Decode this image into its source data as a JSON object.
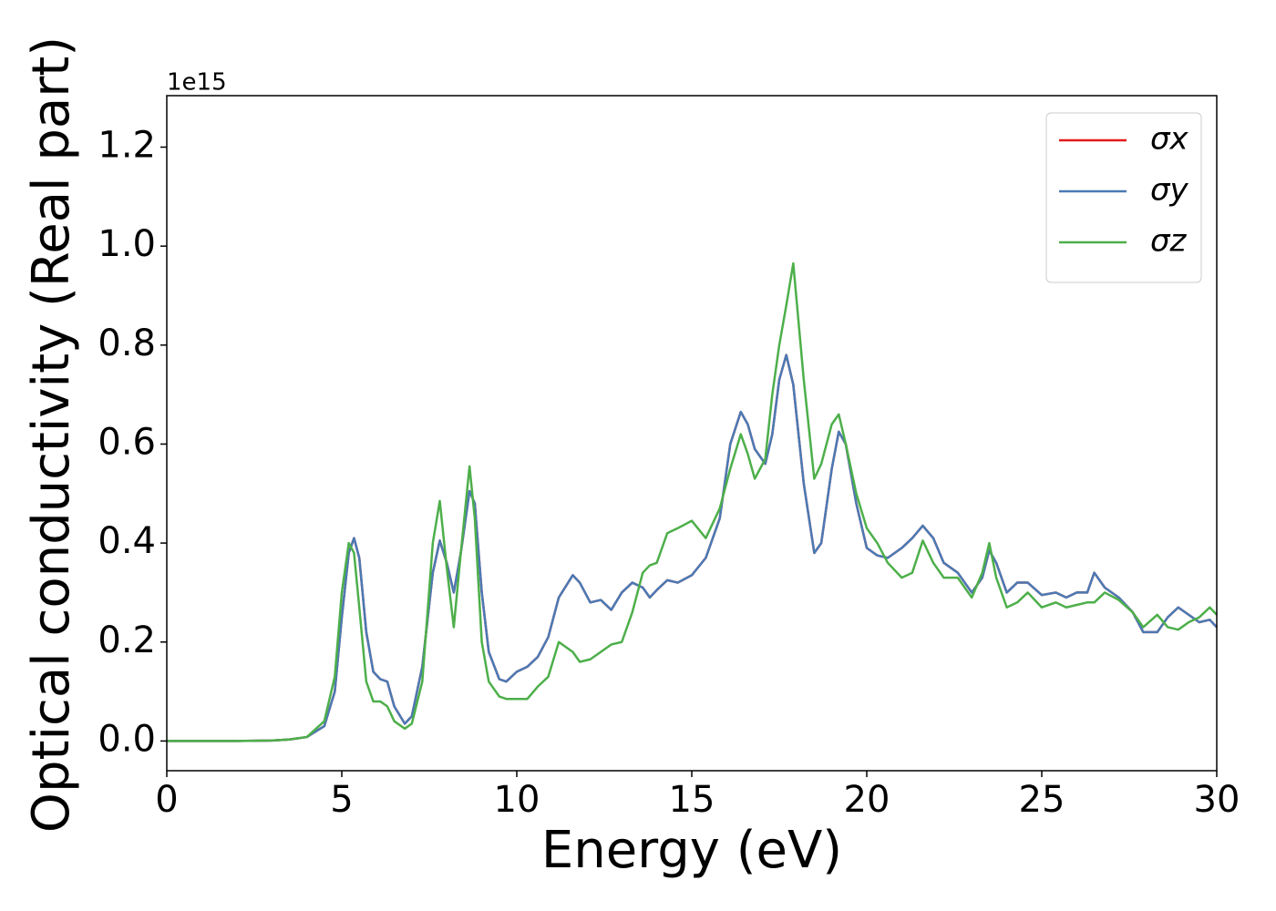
{
  "chart_data": {
    "type": "line",
    "xlabel": "Energy (eV)",
    "ylabel": "Optical conductivity (Real part)",
    "y_offset_text": "1e15",
    "xlim": [
      0,
      30
    ],
    "ylim": [
      -0.06,
      1.304
    ],
    "xticks": [
      0,
      5,
      10,
      15,
      20,
      25,
      30
    ],
    "yticks": [
      {
        "value": 0,
        "label": "0.0"
      },
      0.2,
      0.4,
      0.6,
      0.8,
      {
        "value": 1,
        "label": "1.0"
      },
      1.2
    ],
    "legend": "upper right",
    "x": [
      0,
      1,
      2,
      3,
      3.5,
      4,
      4.5,
      4.8,
      5.0,
      5.2,
      5.35,
      5.5,
      5.7,
      5.9,
      6.1,
      6.3,
      6.5,
      6.8,
      7.0,
      7.3,
      7.6,
      7.8,
      8.0,
      8.2,
      8.4,
      8.65,
      8.8,
      9.0,
      9.2,
      9.5,
      9.7,
      10,
      10.3,
      10.6,
      10.9,
      11.2,
      11.6,
      11.8,
      12.1,
      12.4,
      12.7,
      13.0,
      13.3,
      13.6,
      13.8,
      14.0,
      14.3,
      14.6,
      15.0,
      15.4,
      15.8,
      16.1,
      16.4,
      16.6,
      16.8,
      17.1,
      17.3,
      17.5,
      17.7,
      17.9,
      18.2,
      18.5,
      18.7,
      19.0,
      19.2,
      19.4,
      19.7,
      20.0,
      20.3,
      20.6,
      21.0,
      21.3,
      21.6,
      21.9,
      22.2,
      22.6,
      23.0,
      23.3,
      23.5,
      23.7,
      24.0,
      24.3,
      24.6,
      25.0,
      25.4,
      25.7,
      26.0,
      26.3,
      26.5,
      26.8,
      27.2,
      27.6,
      27.9,
      28.3,
      28.6,
      28.9,
      29.2,
      29.5,
      29.8,
      30
    ],
    "series": [
      {
        "name": "σx",
        "color": "#e41a1c",
        "values": [
          0,
          0,
          0,
          0.001,
          0.003,
          0.008,
          0.03,
          0.1,
          0.25,
          0.38,
          0.41,
          0.37,
          0.22,
          0.14,
          0.125,
          0.12,
          0.07,
          0.035,
          0.05,
          0.15,
          0.34,
          0.405,
          0.36,
          0.3,
          0.38,
          0.505,
          0.48,
          0.3,
          0.18,
          0.125,
          0.12,
          0.14,
          0.15,
          0.17,
          0.21,
          0.29,
          0.335,
          0.32,
          0.28,
          0.285,
          0.265,
          0.3,
          0.32,
          0.31,
          0.29,
          0.305,
          0.325,
          0.32,
          0.335,
          0.37,
          0.45,
          0.6,
          0.665,
          0.64,
          0.59,
          0.56,
          0.62,
          0.73,
          0.78,
          0.72,
          0.52,
          0.38,
          0.4,
          0.55,
          0.625,
          0.6,
          0.48,
          0.39,
          0.375,
          0.37,
          0.39,
          0.41,
          0.435,
          0.41,
          0.36,
          0.34,
          0.3,
          0.33,
          0.385,
          0.36,
          0.3,
          0.32,
          0.32,
          0.295,
          0.3,
          0.29,
          0.3,
          0.3,
          0.34,
          0.31,
          0.29,
          0.26,
          0.22,
          0.22,
          0.25,
          0.27,
          0.255,
          0.24,
          0.245,
          0.23
        ]
      },
      {
        "name": "σy",
        "color": "#4a7ab4",
        "values": [
          0,
          0,
          0,
          0.001,
          0.003,
          0.008,
          0.03,
          0.1,
          0.25,
          0.38,
          0.41,
          0.37,
          0.22,
          0.14,
          0.125,
          0.12,
          0.07,
          0.035,
          0.05,
          0.15,
          0.34,
          0.405,
          0.36,
          0.3,
          0.38,
          0.505,
          0.48,
          0.3,
          0.18,
          0.125,
          0.12,
          0.14,
          0.15,
          0.17,
          0.21,
          0.29,
          0.335,
          0.32,
          0.28,
          0.285,
          0.265,
          0.3,
          0.32,
          0.31,
          0.29,
          0.305,
          0.325,
          0.32,
          0.335,
          0.37,
          0.45,
          0.6,
          0.665,
          0.64,
          0.59,
          0.56,
          0.62,
          0.73,
          0.78,
          0.72,
          0.52,
          0.38,
          0.4,
          0.55,
          0.625,
          0.6,
          0.48,
          0.39,
          0.375,
          0.37,
          0.39,
          0.41,
          0.435,
          0.41,
          0.36,
          0.34,
          0.3,
          0.33,
          0.385,
          0.36,
          0.3,
          0.32,
          0.32,
          0.295,
          0.3,
          0.29,
          0.3,
          0.3,
          0.34,
          0.31,
          0.29,
          0.26,
          0.22,
          0.22,
          0.25,
          0.27,
          0.255,
          0.24,
          0.245,
          0.23
        ]
      },
      {
        "name": "σz",
        "color": "#4daf4a",
        "values": [
          0,
          0,
          0,
          0.001,
          0.003,
          0.008,
          0.04,
          0.13,
          0.3,
          0.4,
          0.38,
          0.27,
          0.12,
          0.08,
          0.08,
          0.07,
          0.04,
          0.025,
          0.035,
          0.12,
          0.4,
          0.485,
          0.35,
          0.23,
          0.38,
          0.555,
          0.45,
          0.2,
          0.12,
          0.09,
          0.085,
          0.085,
          0.085,
          0.11,
          0.13,
          0.2,
          0.18,
          0.16,
          0.165,
          0.18,
          0.195,
          0.2,
          0.26,
          0.34,
          0.355,
          0.36,
          0.42,
          0.43,
          0.445,
          0.41,
          0.47,
          0.55,
          0.62,
          0.58,
          0.53,
          0.57,
          0.7,
          0.8,
          0.88,
          0.965,
          0.73,
          0.53,
          0.56,
          0.64,
          0.66,
          0.6,
          0.5,
          0.43,
          0.4,
          0.36,
          0.33,
          0.34,
          0.405,
          0.36,
          0.33,
          0.33,
          0.29,
          0.34,
          0.4,
          0.33,
          0.27,
          0.28,
          0.3,
          0.27,
          0.28,
          0.27,
          0.275,
          0.28,
          0.28,
          0.3,
          0.285,
          0.26,
          0.23,
          0.255,
          0.23,
          0.225,
          0.24,
          0.25,
          0.27,
          0.255
        ]
      }
    ]
  }
}
